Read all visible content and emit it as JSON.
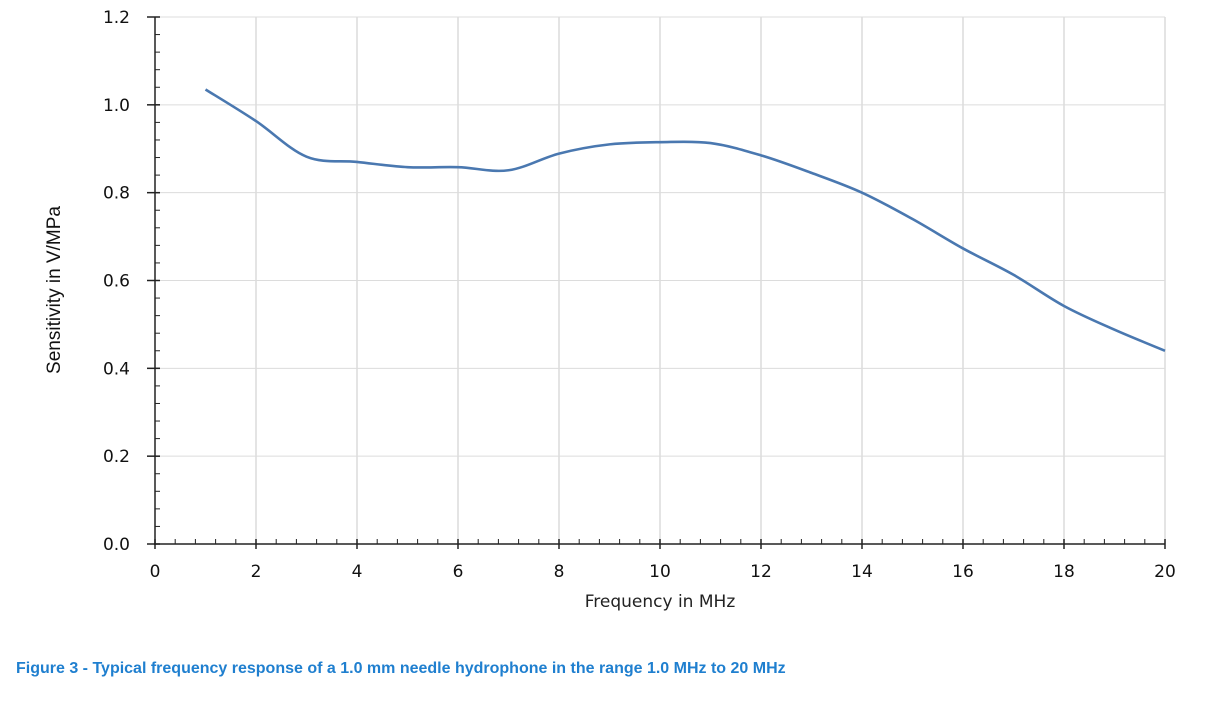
{
  "chart_data": {
    "type": "line",
    "title": "",
    "xlabel": "Frequency in MHz",
    "ylabel": "Sensitivity in V/MPa",
    "xlim": [
      0,
      20
    ],
    "ylim": [
      0,
      1.2
    ],
    "xticks": [
      "0",
      "2",
      "4",
      "6",
      "8",
      "10",
      "12",
      "14",
      "16",
      "18",
      "20"
    ],
    "yticks": [
      "0.0",
      "0.2",
      "0.4",
      "0.6",
      "0.8",
      "1.0",
      "1.2"
    ],
    "grid": true,
    "series": [
      {
        "name": "Sensitivity",
        "color": "#4a78b0",
        "x": [
          1,
          2,
          3,
          4,
          5,
          6,
          7,
          8,
          9,
          10,
          11,
          12,
          13,
          14,
          15,
          16,
          17,
          18,
          19,
          20
        ],
        "y": [
          1.035,
          0.963,
          0.882,
          0.87,
          0.858,
          0.858,
          0.851,
          0.889,
          0.91,
          0.915,
          0.913,
          0.885,
          0.845,
          0.8,
          0.74,
          0.673,
          0.613,
          0.542,
          0.488,
          0.44
        ]
      }
    ]
  },
  "caption": "Figure 3 - Typical frequency response of a 1.0 mm needle hydrophone in the range 1.0 MHz to 20 MHz"
}
